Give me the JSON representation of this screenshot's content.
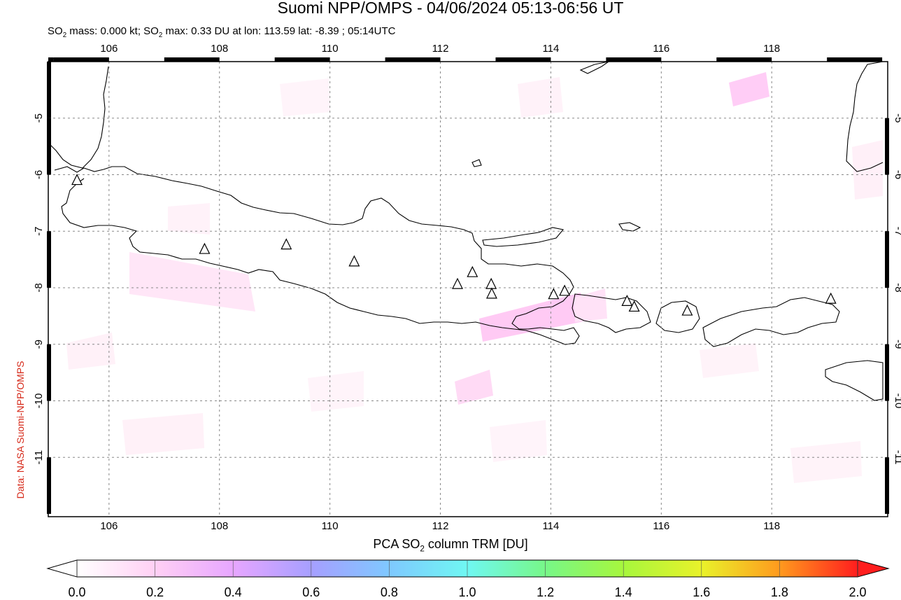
{
  "header": {
    "title": "Suomi NPP/OMPS - 04/06/2024 05:13-06:56 UT",
    "subtitle_mass_prefix": "SO",
    "subtitle_mass_rest": " mass: 0.000 kt; SO",
    "subtitle_max_rest": " max: 0.33 DU at lon: 113.59 lat: -8.39 ; 05:14UTC",
    "sub_2": "2"
  },
  "credit": "Data: NASA Suomi-NPP/OMPS",
  "map": {
    "lon_ticks": [
      "106",
      "108",
      "110",
      "112",
      "114",
      "116",
      "118"
    ],
    "lat_ticks": [
      "-5",
      "-6",
      "-7",
      "-8",
      "-9",
      "-10",
      "-11"
    ],
    "lon_range": [
      104.9,
      120.1
    ],
    "lat_range": [
      -12.05,
      -4.0
    ],
    "volcano_icon": "triangle-marker",
    "volcanoes": [
      {
        "lon": 105.42,
        "lat": -6.1
      },
      {
        "lon": 107.73,
        "lat": -7.32
      },
      {
        "lon": 109.21,
        "lat": -7.24
      },
      {
        "lon": 110.44,
        "lat": -7.54
      },
      {
        "lon": 112.31,
        "lat": -7.94
      },
      {
        "lon": 112.58,
        "lat": -7.73
      },
      {
        "lon": 112.92,
        "lat": -7.94
      },
      {
        "lon": 112.93,
        "lat": -8.11
      },
      {
        "lon": 114.05,
        "lat": -8.12
      },
      {
        "lon": 114.25,
        "lat": -8.06
      },
      {
        "lon": 115.38,
        "lat": -8.24
      },
      {
        "lon": 115.51,
        "lat": -8.34
      },
      {
        "lon": 116.47,
        "lat": -8.41
      },
      {
        "lon": 119.07,
        "lat": -8.2
      }
    ],
    "land_color": "#ffffff",
    "coast_color": "#000000",
    "grid_color": "#888888"
  },
  "colorbar": {
    "label_prefix": "PCA SO",
    "label_suffix": " column TRM [DU]",
    "ticks": [
      "0.0",
      "0.2",
      "0.4",
      "0.6",
      "0.8",
      "1.0",
      "1.2",
      "1.4",
      "1.6",
      "1.8",
      "2.0"
    ],
    "min": 0.0,
    "max": 2.0,
    "colors": [
      "#ffffff",
      "#ffd0f4",
      "#e7a6ff",
      "#a69fff",
      "#7fc8ff",
      "#6ff7f2",
      "#77f788",
      "#a7f63d",
      "#e9f22a",
      "#ff9a1e",
      "#ff1e1e"
    ]
  }
}
